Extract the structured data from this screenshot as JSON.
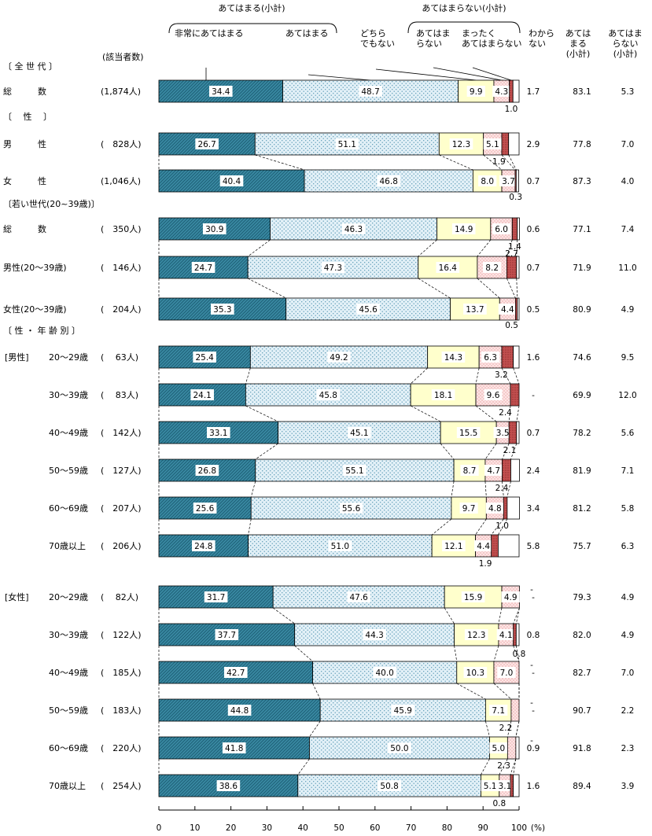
{
  "chart_data": {
    "type": "bar",
    "orientation": "horizontal",
    "stacked": true,
    "x_range": [
      0,
      100
    ],
    "x_unit": "(%)",
    "x_ticks": [
      "0",
      "10",
      "20",
      "30",
      "40",
      "50",
      "60",
      "70",
      "80",
      "90",
      "100"
    ],
    "n_header": "(該当者数)",
    "header": {
      "group_yes": "あてはまる(小計)",
      "group_no": "あてはまらない(小計)",
      "cat_labels": [
        [
          "非常にあてはまる"
        ],
        [
          "あてはまる"
        ],
        [
          "どちら",
          "でもない"
        ],
        [
          "あてはま",
          "らない"
        ],
        [
          "まったく",
          "あてはまらない"
        ],
        [
          "わから",
          "ない"
        ]
      ],
      "col_yes": [
        "あては",
        "まる",
        "(小計)"
      ],
      "col_no": [
        "あてはま",
        "らない",
        "(小計)"
      ]
    },
    "series": [
      {
        "name": "非常にあてはまる",
        "color": "#3a8aa3"
      },
      {
        "name": "あてはまる",
        "color": "#dcedf5"
      },
      {
        "name": "どちらでもない",
        "color": "#ffffcc"
      },
      {
        "name": "あてはまらない",
        "color": "#fbe0e0"
      },
      {
        "name": "まったくあてはまらない",
        "color": "#c06060"
      },
      {
        "name": "わからない",
        "color": "#ffffff"
      }
    ],
    "sections": [
      {
        "label": "〔 全 世 代 〕",
        "row": 0
      },
      {
        "label": "〔　 性　 〕",
        "row": 1
      },
      {
        "label": "〔若い世代(20~39歳)〕",
        "row": 3
      },
      {
        "label": "〔 性 ・ 年 齢 別 〕",
        "row": 6
      },
      {
        "label": "[男性]",
        "row": 6,
        "inline": true
      },
      {
        "label": "[女性]",
        "row": 12,
        "inline": true
      }
    ],
    "rows": [
      {
        "label": "総　　　数",
        "n": "(1,874人)",
        "values": [
          34.4,
          48.7,
          9.9,
          4.3,
          1.0,
          1.7
        ],
        "labels": [
          "34.4",
          "48.7",
          "9.9",
          "4.3",
          "1.0",
          "1.7"
        ],
        "yes": "83.1",
        "no": "5.3"
      },
      {
        "label": "男　　　性",
        "n": "(　828人)",
        "values": [
          26.7,
          51.1,
          12.3,
          5.1,
          1.9,
          2.9
        ],
        "labels": [
          "26.7",
          "51.1",
          "12.3",
          "5.1",
          "1.9",
          "2.9"
        ],
        "yes": "77.8",
        "no": "7.0"
      },
      {
        "label": "女　　　性",
        "n": "(1,046人)",
        "values": [
          40.4,
          46.8,
          8.0,
          3.7,
          0.3,
          0.7
        ],
        "labels": [
          "40.4",
          "46.8",
          "8.0",
          "3.7",
          "0.3",
          "0.7"
        ],
        "yes": "87.3",
        "no": "4.0"
      },
      {
        "label": "総　　　数",
        "n": "(　350人)",
        "values": [
          30.9,
          46.3,
          14.9,
          6.0,
          1.4,
          0.6
        ],
        "labels": [
          "30.9",
          "46.3",
          "14.9",
          "6.0",
          "1.4",
          "0.6"
        ],
        "yes": "77.1",
        "no": "7.4"
      },
      {
        "label": "男性(20～39歳)",
        "n": "(　146人)",
        "values": [
          24.7,
          47.3,
          16.4,
          8.2,
          2.7,
          0.7
        ],
        "labels": [
          "24.7",
          "47.3",
          "16.4",
          "8.2",
          "2.7",
          "0.7"
        ],
        "yes": "71.9",
        "no": "11.0"
      },
      {
        "label": "女性(20～39歳)",
        "n": "(　204人)",
        "values": [
          35.3,
          45.6,
          13.7,
          4.4,
          0.5,
          0.5
        ],
        "labels": [
          "35.3",
          "45.6",
          "13.7",
          "4.4",
          "0.5",
          "0.5"
        ],
        "yes": "80.9",
        "no": "4.9"
      },
      {
        "label": "20～29歳",
        "n": "(　 63人)",
        "values": [
          25.4,
          49.2,
          14.3,
          6.3,
          3.2,
          1.6
        ],
        "labels": [
          "25.4",
          "49.2",
          "14.3",
          "6.3",
          "3.2",
          "1.6"
        ],
        "yes": "74.6",
        "no": "9.5"
      },
      {
        "label": "30～39歳",
        "n": "(　 83人)",
        "values": [
          24.1,
          45.8,
          18.1,
          9.6,
          2.4,
          0.0
        ],
        "labels": [
          "24.1",
          "45.8",
          "18.1",
          "9.6",
          "2.4",
          "-"
        ],
        "yes": "69.9",
        "no": "12.0"
      },
      {
        "label": "40～49歳",
        "n": "(　142人)",
        "values": [
          33.1,
          45.1,
          15.5,
          3.5,
          2.1,
          0.7
        ],
        "labels": [
          "33.1",
          "45.1",
          "15.5",
          "3.5",
          "2.1",
          "0.7"
        ],
        "yes": "78.2",
        "no": "5.6"
      },
      {
        "label": "50～59歳",
        "n": "(　127人)",
        "values": [
          26.8,
          55.1,
          8.7,
          4.7,
          2.4,
          2.4
        ],
        "labels": [
          "26.8",
          "55.1",
          "8.7",
          "4.7",
          "2.4",
          "2.4"
        ],
        "yes": "81.9",
        "no": "7.1"
      },
      {
        "label": "60～69歳",
        "n": "(　207人)",
        "values": [
          25.6,
          55.6,
          9.7,
          4.8,
          1.0,
          3.4
        ],
        "labels": [
          "25.6",
          "55.6",
          "9.7",
          "4.8",
          "1.0",
          "3.4"
        ],
        "yes": "81.2",
        "no": "5.8"
      },
      {
        "label": "70歳以上",
        "n": "(　206人)",
        "values": [
          24.8,
          51.0,
          12.1,
          4.4,
          1.9,
          5.8
        ],
        "labels": [
          "24.8",
          "51.0",
          "12.1",
          "4.4",
          "1.9",
          "5.8"
        ],
        "yes": "75.7",
        "no": "6.3"
      },
      {
        "label": "20～29歳",
        "n": "(　 82人)",
        "values": [
          31.7,
          47.6,
          15.9,
          4.9,
          0.0,
          0.0
        ],
        "labels": [
          "31.7",
          "47.6",
          "15.9",
          "4.9",
          "-",
          "-"
        ],
        "yes": "79.3",
        "no": "4.9"
      },
      {
        "label": "30～39歳",
        "n": "(　122人)",
        "values": [
          37.7,
          44.3,
          12.3,
          4.1,
          0.8,
          0.8
        ],
        "labels": [
          "37.7",
          "44.3",
          "12.3",
          "4.1",
          "0.8",
          "0.8"
        ],
        "yes": "82.0",
        "no": "4.9"
      },
      {
        "label": "40～49歳",
        "n": "(　185人)",
        "values": [
          42.7,
          40.0,
          10.3,
          7.0,
          0.0,
          0.0
        ],
        "labels": [
          "42.7",
          "40.0",
          "10.3",
          "7.0",
          "-",
          "-"
        ],
        "yes": "82.7",
        "no": "7.0"
      },
      {
        "label": "50～59歳",
        "n": "(　183人)",
        "values": [
          44.8,
          45.9,
          7.1,
          2.2,
          0.0,
          0.0
        ],
        "labels": [
          "44.8",
          "45.9",
          "7.1",
          "2.2",
          "-",
          "-"
        ],
        "yes": "90.7",
        "no": "2.2"
      },
      {
        "label": "60～69歳",
        "n": "(　220人)",
        "values": [
          41.8,
          50.0,
          5.0,
          2.3,
          0.0,
          0.9
        ],
        "labels": [
          "41.8",
          "50.0",
          "5.0",
          "2.3",
          "-",
          "0.9"
        ],
        "yes": "91.8",
        "no": "2.3"
      },
      {
        "label": "70歳以上",
        "n": "(　254人)",
        "values": [
          38.6,
          50.8,
          5.1,
          3.1,
          0.8,
          1.6
        ],
        "labels": [
          "38.6",
          "50.8",
          "5.1",
          "3.1",
          "0.8",
          "1.6"
        ],
        "yes": "89.4",
        "no": "3.9"
      }
    ]
  }
}
